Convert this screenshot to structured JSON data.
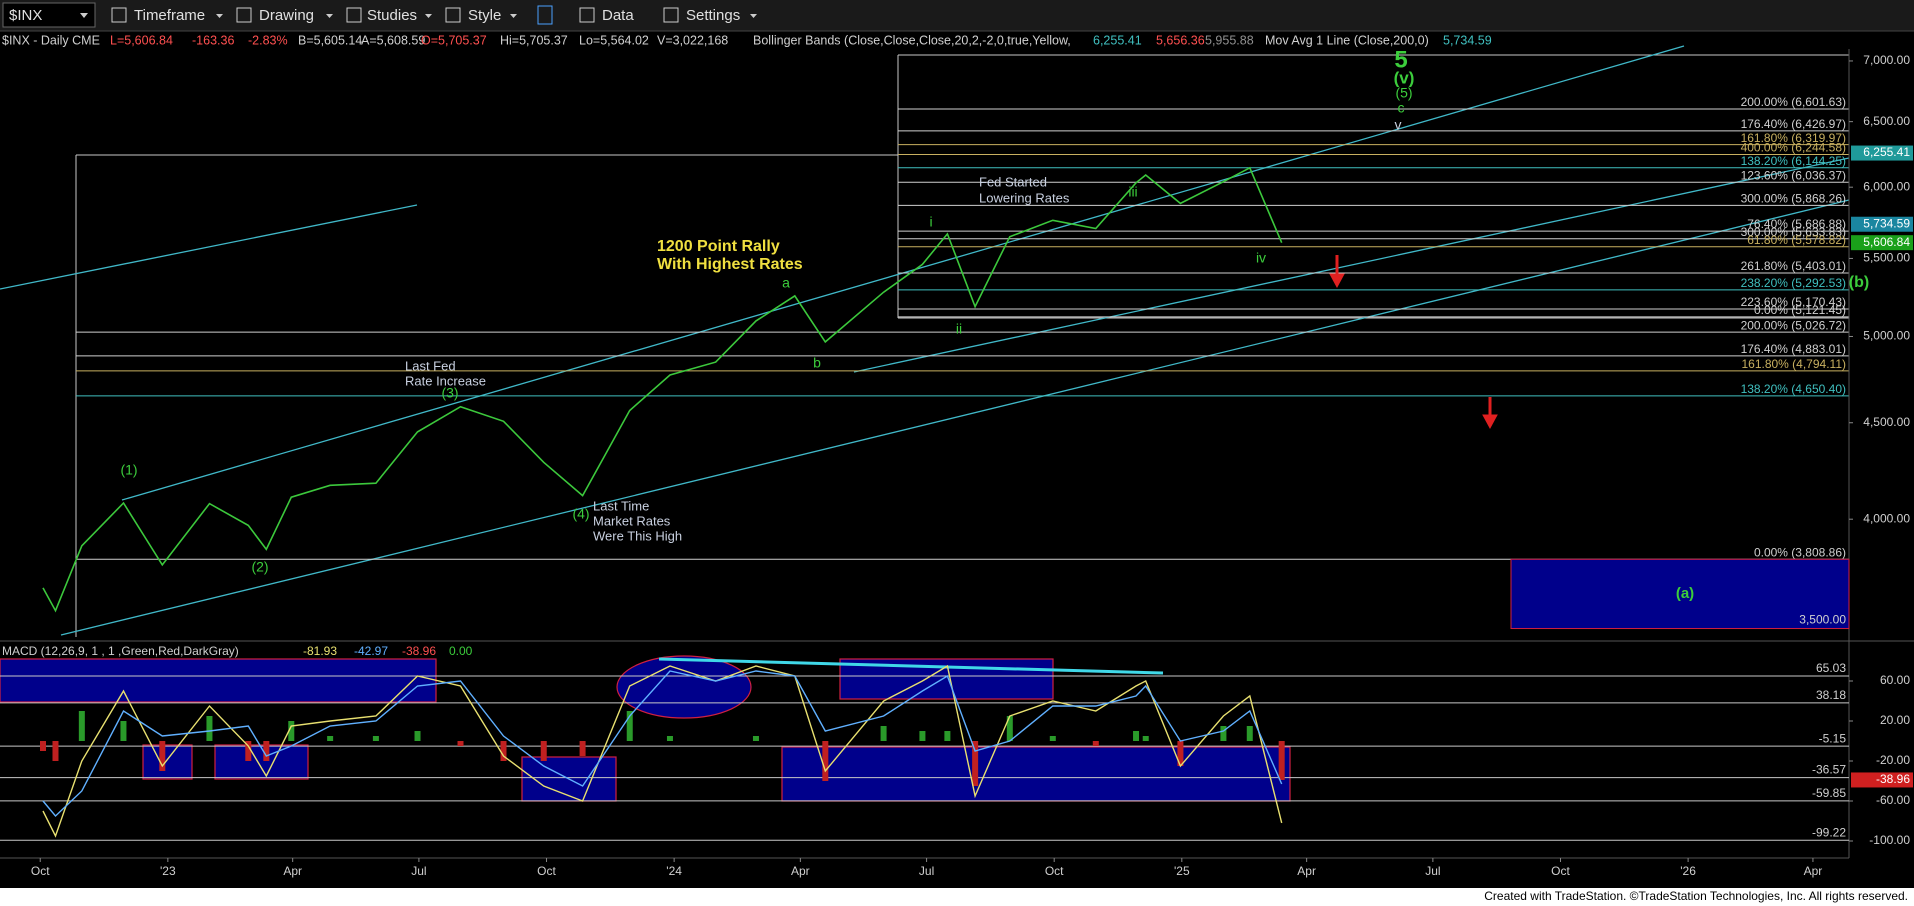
{
  "toolbar": {
    "symbol": "$INX",
    "menus": [
      "Timeframe",
      "Drawing",
      "Studies",
      "Style",
      "Data",
      "Settings"
    ]
  },
  "header": {
    "symbol": "$INX - Daily  CME",
    "last": "L=5,606.84",
    "change": "-163.36",
    "change_pct": "-2.83%",
    "bid": "B=5,605.14",
    "ask": "A=5,608.59",
    "open": "O=5,705.37",
    "hi": "Hi=5,705.37",
    "lo": "Lo=5,564.02",
    "vol": "V=3,022,168",
    "bb_name": "Bollinger Bands (Close,Close,Close,20,2,-2,0,true,Yellow,",
    "bb_upper": "6,255.41",
    "bb_lower": "5,656.36",
    "bb_mid": "5,955.88",
    "ma_name": "Mov Avg 1 Line (Close,200,0)",
    "ma_value": "5,734.59"
  },
  "chart_data": [
    {
      "type": "line",
      "color": "#3cc83c",
      "log": true,
      "xlim": [
        "2022-09-02",
        "2026-04-27"
      ],
      "x": [
        "2022-10-03",
        "2022-10-12",
        "2022-10-31",
        "2022-11-30",
        "2022-12-28",
        "2023-01-31",
        "2023-02-28",
        "2023-03-13",
        "2023-03-31",
        "2023-04-28",
        "2023-05-31",
        "2023-06-30",
        "2023-07-31",
        "2023-08-31",
        "2023-09-29",
        "2023-10-27",
        "2023-11-30",
        "2023-12-29",
        "2024-01-31",
        "2024-02-29",
        "2024-03-28",
        "2024-04-19",
        "2024-05-31",
        "2024-06-28",
        "2024-07-16",
        "2024-08-05",
        "2024-08-30",
        "2024-09-30",
        "2024-10-31",
        "2024-11-29",
        "2024-12-06",
        "2024-12-31",
        "2025-01-31",
        "2025-02-19",
        "2025-03-14"
      ],
      "values": [
        3678,
        3577,
        3872,
        4080,
        3783,
        4077,
        3970,
        3855,
        4109,
        4169,
        4180,
        4450,
        4589,
        4508,
        4288,
        4117,
        4568,
        4770,
        4846,
        5096,
        5254,
        4967,
        5278,
        5460,
        5667,
        5186,
        5648,
        5762,
        5705,
        6032,
        6090,
        5882,
        6040,
        6144,
        5606.84
      ],
      "ylim": [
        3464,
        7103
      ],
      "yticks": [
        {
          "value": 7000,
          "label": "7,000.00"
        },
        {
          "value": 6500,
          "label": "6,500.00"
        },
        {
          "value": 6000,
          "label": "6,000.00"
        },
        {
          "value": 5500,
          "label": "5,500.00"
        },
        {
          "value": 5000,
          "label": "5,000.00"
        },
        {
          "value": 4500,
          "label": "4,500.00"
        },
        {
          "value": 4000,
          "label": "4,000.00"
        }
      ],
      "upper_fib": [
        {
          "value": 6601.63,
          "label": "200.00% (6,601.63)",
          "color": "#d0d0d0"
        },
        {
          "value": 6426.97,
          "label": "176.40% (6,426.97)",
          "color": "#d0d0d0"
        },
        {
          "value": 6319.97,
          "label": "161.80% (6,319.97)",
          "color": "#c8b060"
        },
        {
          "value": 6244.58,
          "label": "400.00% (6,244.58)",
          "color": "#c8b060"
        },
        {
          "value": 6144.25,
          "label": "138.20% (6,144.25)",
          "color": "#40c0c0"
        },
        {
          "value": 6036.37,
          "label": "123.60% (6,036.37)",
          "color": "#d0d0d0"
        },
        {
          "value": 5868.26,
          "label": "300.00% (5,868.26)",
          "color": "#d0d0d0"
        },
        {
          "value": 5686.88,
          "label": "76.40% (5,686.88)",
          "color": "#d0d0d0"
        },
        {
          "value": 5633.83,
          "label": "300.00% (5,633.83)",
          "color": "#d0d0d0"
        },
        {
          "value": 5578.82,
          "label": "61.80% (5,578.82)",
          "color": "#c8b060"
        },
        {
          "value": 5403.01,
          "label": "261.80% (5,403.01)",
          "color": "#d0d0d0"
        },
        {
          "value": 5292.53,
          "label": "238.20% (5,292.53)",
          "color": "#40c0c0"
        },
        {
          "value": 5170.43,
          "label": "223.60% (5,170.43)",
          "color": "#d0d0d0"
        },
        {
          "value": 5121.45,
          "label": "0.00% (5,121.45)",
          "color": "#d0d0d0"
        }
      ],
      "lower_fib": [
        {
          "value": 5026.72,
          "label": "200.00% (5,026.72)",
          "color": "#d0d0d0"
        },
        {
          "value": 4883.01,
          "label": "176.40% (4,883.01)",
          "color": "#d0d0d0"
        },
        {
          "value": 4794.11,
          "label": "161.80% (4,794.11)",
          "color": "#c8b060"
        },
        {
          "value": 4650.4,
          "label": "138.20% (4,650.40)",
          "color": "#40c0c0"
        },
        {
          "value": 3808.86,
          "label": "0.00% (3,808.86)",
          "color": "#d0d0d0"
        }
      ],
      "box_level": {
        "value": 3500,
        "label": "3,500.00"
      },
      "tags": [
        {
          "value": 6255.41,
          "label": "6,255.41",
          "color": "#1f9a9a"
        },
        {
          "value": 5734.59,
          "label": "5,734.59",
          "color": "#1a86a0"
        },
        {
          "value": 5606.84,
          "label": "5,606.84",
          "color": "#1aa01a"
        }
      ]
    },
    {
      "type": "macd",
      "title": "MACD (12,26,9, 1 , 1 ,Green,Red,DarkGray)",
      "readouts": [
        "-81.93",
        "-42.97",
        "-38.96",
        "0.00"
      ],
      "ylim": [
        -114,
        96
      ],
      "yticks": [
        {
          "value": 60,
          "label": "60.00"
        },
        {
          "value": 20,
          "label": "20.00"
        },
        {
          "value": -20,
          "label": "-20.00"
        },
        {
          "value": -60,
          "label": "-60.00"
        },
        {
          "value": -100,
          "label": "-100.00"
        }
      ],
      "levels": [
        65.03,
        38.18,
        -5.15,
        -36.57,
        -59.85,
        -99.22
      ],
      "tag": {
        "value": -38.96,
        "color": "#d02020"
      },
      "series": [
        {
          "color": "#e8e070",
          "values": [
            -70,
            -95,
            -20,
            50,
            -25,
            35,
            -5,
            -35,
            15,
            20,
            25,
            65,
            55,
            -15,
            -45,
            -60,
            55,
            75,
            60,
            75,
            65,
            -30,
            40,
            60,
            75,
            -55,
            25,
            40,
            30,
            55,
            60,
            -25,
            25,
            45,
            -81.93
          ]
        },
        {
          "color": "#60b0ff",
          "values": [
            -60,
            -75,
            -50,
            30,
            5,
            10,
            15,
            -15,
            -5,
            15,
            20,
            55,
            60,
            5,
            -25,
            -45,
            25,
            70,
            60,
            70,
            65,
            10,
            25,
            50,
            65,
            -10,
            0,
            35,
            35,
            45,
            55,
            0,
            10,
            30,
            -42.97
          ]
        }
      ],
      "histogram": {
        "pos_color": "#2a9a2a",
        "neg_color": "#c02020",
        "values": [
          -10,
          -20,
          30,
          20,
          -30,
          25,
          -20,
          -20,
          20,
          5,
          5,
          10,
          -5,
          -20,
          -20,
          -15,
          30,
          5,
          0,
          5,
          0,
          -40,
          15,
          10,
          10,
          -45,
          25,
          5,
          -5,
          10,
          5,
          -25,
          15,
          15,
          -38.96
        ]
      },
      "xticks": [
        {
          "value": "2022-10-01",
          "label": "Oct"
        },
        {
          "value": "2023-01-01",
          "label": "'23"
        },
        {
          "value": "2023-04-01",
          "label": "Apr"
        },
        {
          "value": "2023-07-01",
          "label": "Jul"
        },
        {
          "value": "2023-10-01",
          "label": "Oct"
        },
        {
          "value": "2024-01-01",
          "label": "'24"
        },
        {
          "value": "2024-04-01",
          "label": "Apr"
        },
        {
          "value": "2024-07-01",
          "label": "Jul"
        },
        {
          "value": "2024-10-01",
          "label": "Oct"
        },
        {
          "value": "2025-01-01",
          "label": "'25"
        },
        {
          "value": "2025-04-01",
          "label": "Apr"
        },
        {
          "value": "2025-07-01",
          "label": "Jul"
        },
        {
          "value": "2025-10-01",
          "label": "Oct"
        },
        {
          "value": "2026-01-01",
          "label": "'26"
        },
        {
          "value": "2026-04-01",
          "label": "Apr"
        }
      ]
    }
  ],
  "annotations": [
    "5",
    "(v)",
    "(5)",
    "c",
    "v",
    "iii",
    "i",
    "ii",
    "iv",
    "a",
    "b",
    "(1)",
    "(2)",
    "(3)",
    "(4)",
    "(b)",
    "(a)",
    "Fed Started",
    "Lowering Rates",
    "1200 Point Rally",
    "With Highest Rates",
    "Last Fed",
    "Rate Increase",
    "Last Time",
    "Market Rates",
    "Were This High"
  ],
  "footer": "Created with TradeStation. ©TradeStation Technologies, Inc. All rights reserved."
}
